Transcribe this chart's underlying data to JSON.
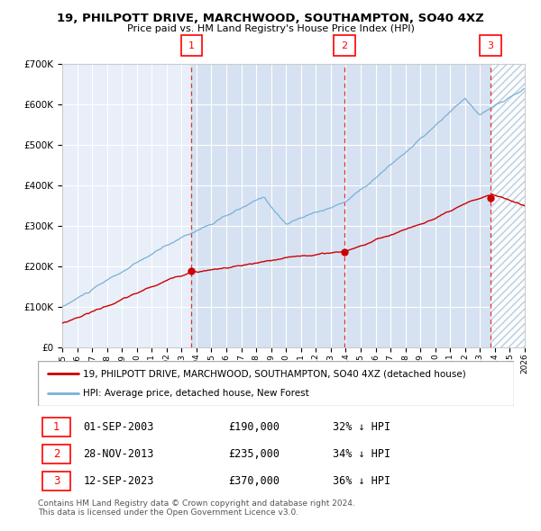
{
  "title": "19, PHILPOTT DRIVE, MARCHWOOD, SOUTHAMPTON, SO40 4XZ",
  "subtitle": "Price paid vs. HM Land Registry's House Price Index (HPI)",
  "legend_red": "19, PHILPOTT DRIVE, MARCHWOOD, SOUTHAMPTON, SO40 4XZ (detached house)",
  "legend_blue": "HPI: Average price, detached house, New Forest",
  "transactions": [
    {
      "num": 1,
      "date": "01-SEP-2003",
      "price": 190000,
      "pct": "32%",
      "dir": "↓",
      "x_year": 2003.67
    },
    {
      "num": 2,
      "date": "28-NOV-2013",
      "price": 235000,
      "pct": "34%",
      "dir": "↓",
      "x_year": 2013.91
    },
    {
      "num": 3,
      "date": "12-SEP-2023",
      "price": 370000,
      "pct": "36%",
      "dir": "↓",
      "x_year": 2023.7
    }
  ],
  "footer1": "Contains HM Land Registry data © Crown copyright and database right 2024.",
  "footer2": "This data is licensed under the Open Government Licence v3.0.",
  "ylim": [
    0,
    700000
  ],
  "xlim_start": 1995.0,
  "xlim_end": 2026.0,
  "red_color": "#cc0000",
  "blue_color": "#7ab0d4",
  "bg_color": "#e8eff8"
}
